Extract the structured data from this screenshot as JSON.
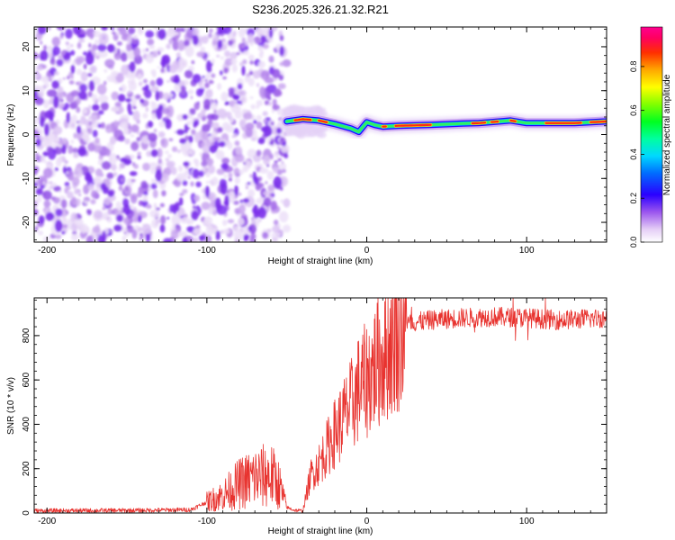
{
  "title": "S236.2025.326.21.32.R21",
  "chart_data": [
    {
      "type": "heatmap",
      "title": "",
      "xlabel": "Height of straight line (km)",
      "ylabel": "Frequency (Hz)",
      "xlim": [
        -208,
        150
      ],
      "ylim": [
        -24.5,
        24.5
      ],
      "xticks": [
        -200,
        -100,
        0,
        100
      ],
      "yticks": [
        -20,
        -10,
        0,
        10,
        20
      ],
      "noise_region_x": [
        -208,
        -50
      ],
      "ridge": {
        "x": [
          -50,
          -40,
          -30,
          -20,
          -10,
          -5,
          0,
          5,
          10,
          20,
          40,
          60,
          70,
          80,
          90,
          100,
          110,
          130,
          150
        ],
        "freq_hz": [
          3.0,
          3.5,
          3.2,
          2.4,
          1.4,
          0.6,
          2.8,
          2.2,
          1.8,
          2.0,
          2.2,
          2.5,
          2.6,
          2.9,
          3.2,
          2.6,
          2.6,
          2.6,
          3.0
        ]
      },
      "colorbar": {
        "label": "Normalized spectral amplitude",
        "range": [
          0.0,
          0.98
        ],
        "ticks": [
          "0.0",
          "0.2",
          "0.4",
          "0.6",
          "0.8"
        ]
      }
    },
    {
      "type": "line",
      "title": "",
      "xlabel": "Height of straight line (km)",
      "ylabel": "SNR (10 * v/v)",
      "xlim": [
        -208,
        150
      ],
      "ylim": [
        0,
        970
      ],
      "xticks": [
        -200,
        -100,
        0,
        100
      ],
      "yticks": [
        0,
        200,
        400,
        600,
        800
      ],
      "series": [
        {
          "name": "SNR",
          "color": "#e8332f",
          "x": [
            -208,
            -140,
            -110,
            -100,
            -90,
            -80,
            -70,
            -60,
            -55,
            -50,
            -45,
            -40,
            -35,
            -30,
            -25,
            -20,
            -15,
            -10,
            -5,
            0,
            5,
            10,
            15,
            20,
            25,
            30,
            40,
            60,
            80,
            100,
            120,
            150
          ],
          "y": [
            10,
            12,
            15,
            50,
            80,
            130,
            160,
            170,
            130,
            25,
            12,
            10,
            170,
            220,
            290,
            360,
            420,
            480,
            560,
            600,
            660,
            710,
            760,
            820,
            850,
            860,
            870,
            880,
            885,
            880,
            870,
            880
          ]
        }
      ]
    }
  ]
}
